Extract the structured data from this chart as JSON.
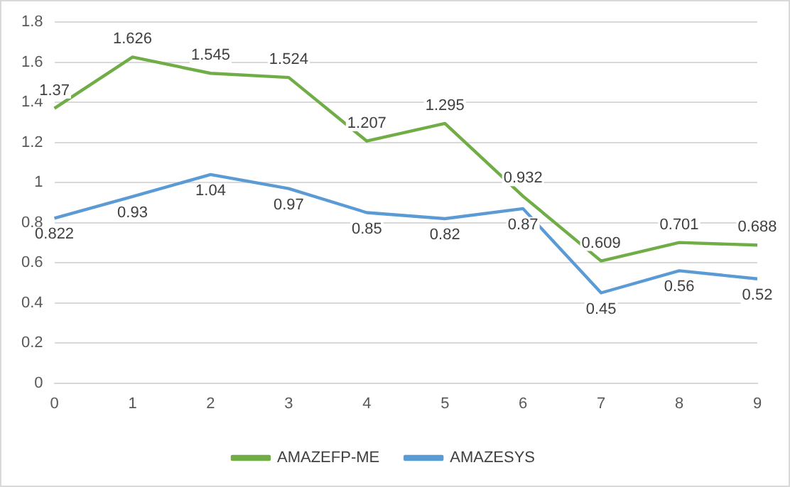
{
  "chart_data": {
    "type": "line",
    "categories": [
      "0",
      "1",
      "2",
      "3",
      "4",
      "5",
      "6",
      "7",
      "8",
      "9"
    ],
    "series": [
      {
        "name": "AMAZEFP-ME",
        "color": "#70ad47",
        "values": [
          1.37,
          1.626,
          1.545,
          1.524,
          1.207,
          1.295,
          0.932,
          0.609,
          0.701,
          0.688
        ]
      },
      {
        "name": "AMAZESYS",
        "color": "#5b9bd5",
        "values": [
          0.822,
          0.93,
          1.04,
          0.97,
          0.85,
          0.82,
          0.87,
          0.45,
          0.56,
          0.52
        ]
      }
    ],
    "ylim": [
      0,
      1.8
    ],
    "yticks": [
      0,
      0.2,
      0.4,
      0.6,
      0.8,
      1,
      1.2,
      1.4,
      1.6,
      1.8
    ],
    "grid": "y",
    "legend": "bottom",
    "data_labels": true,
    "marker": "none",
    "line_style": "solid"
  }
}
